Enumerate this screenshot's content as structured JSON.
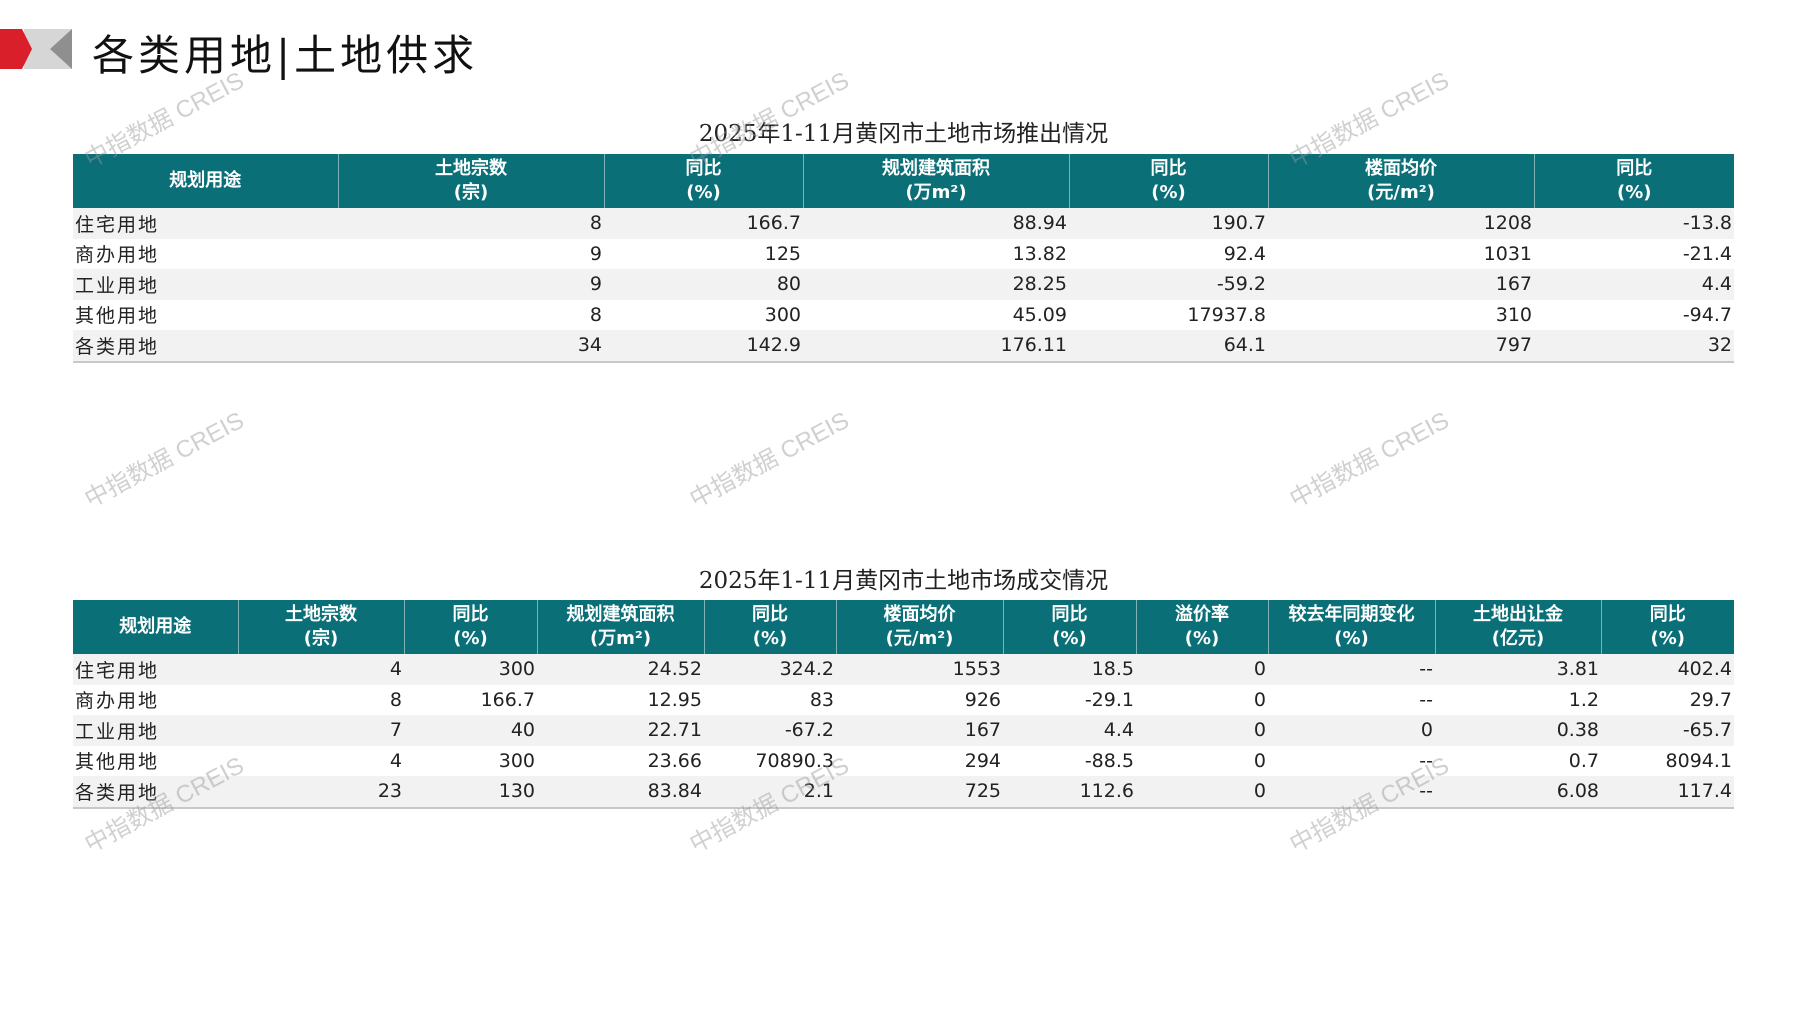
{
  "page_title": "各类用地|土地供求",
  "colors": {
    "header_bg": "#0b6f78",
    "accent_red": "#d9202a",
    "logo_gray": "#bdbdbd"
  },
  "watermark": "中指数据 CREIS",
  "supply": {
    "title": "2025年1-11月黄冈市土地市场推出情况",
    "headers": [
      [
        "规划用途",
        ""
      ],
      [
        "土地宗数",
        "(宗)"
      ],
      [
        "同比",
        "(%)"
      ],
      [
        "规划建筑面积",
        "(万m²)"
      ],
      [
        "同比",
        "(%)"
      ],
      [
        "楼面均价",
        "(元/m²)"
      ],
      [
        "同比",
        "(%)"
      ]
    ],
    "rows": [
      [
        "住宅用地",
        "8",
        "166.7",
        "88.94",
        "190.7",
        "1208",
        "-13.8"
      ],
      [
        "商办用地",
        "9",
        "125",
        "13.82",
        "92.4",
        "1031",
        "-21.4"
      ],
      [
        "工业用地",
        "9",
        "80",
        "28.25",
        "-59.2",
        "167",
        "4.4"
      ],
      [
        "其他用地",
        "8",
        "300",
        "45.09",
        "17937.8",
        "310",
        "-94.7"
      ],
      [
        "各类用地",
        "34",
        "142.9",
        "176.11",
        "64.1",
        "797",
        "32"
      ]
    ]
  },
  "deals": {
    "title": "2025年1-11月黄冈市土地市场成交情况",
    "headers": [
      [
        "规划用途",
        ""
      ],
      [
        "土地宗数",
        "(宗)"
      ],
      [
        "同比",
        "(%)"
      ],
      [
        "规划建筑面积",
        "(万m²)"
      ],
      [
        "同比",
        "(%)"
      ],
      [
        "楼面均价",
        "(元/m²)"
      ],
      [
        "同比",
        "(%)"
      ],
      [
        "溢价率",
        "(%)"
      ],
      [
        "较去年同期变化",
        "(%)"
      ],
      [
        "土地出让金",
        "(亿元)"
      ],
      [
        "同比",
        "(%)"
      ]
    ],
    "rows": [
      [
        "住宅用地",
        "4",
        "300",
        "24.52",
        "324.2",
        "1553",
        "18.5",
        "0",
        "--",
        "3.81",
        "402.4"
      ],
      [
        "商办用地",
        "8",
        "166.7",
        "12.95",
        "83",
        "926",
        "-29.1",
        "0",
        "--",
        "1.2",
        "29.7"
      ],
      [
        "工业用地",
        "7",
        "40",
        "22.71",
        "-67.2",
        "167",
        "4.4",
        "0",
        "0",
        "0.38",
        "-65.7"
      ],
      [
        "其他用地",
        "4",
        "300",
        "23.66",
        "70890.3",
        "294",
        "-88.5",
        "0",
        "--",
        "0.7",
        "8094.1"
      ],
      [
        "各类用地",
        "23",
        "130",
        "83.84",
        "2.1",
        "725",
        "112.6",
        "0",
        "--",
        "6.08",
        "117.4"
      ]
    ]
  }
}
